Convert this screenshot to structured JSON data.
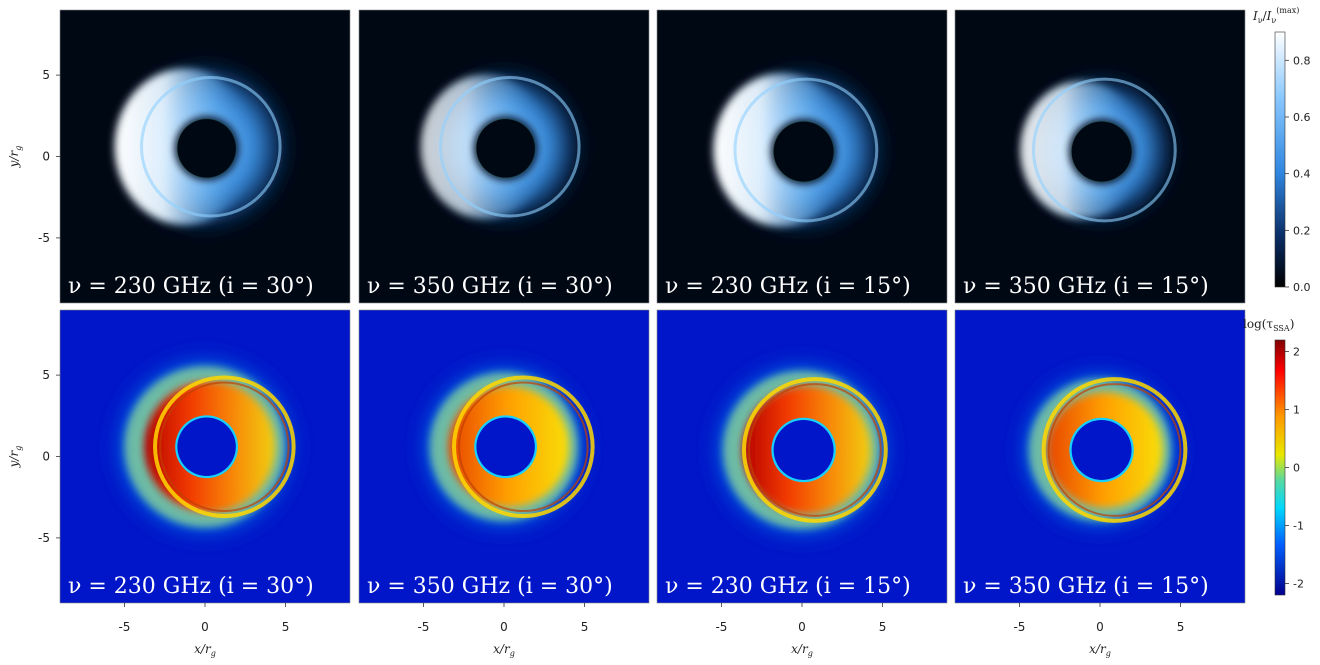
{
  "chart_data": {
    "type": "heatmap",
    "rows": [
      {
        "quantity": "intensity",
        "colormap": "black-blue-white",
        "colorbar": {
          "label": "I_ν/I_ν^(max)",
          "label_main": "I",
          "label_sub": "ν",
          "label_slash": "/",
          "label_main2": "I",
          "label_sub2": "ν",
          "label_sup2": "(max)",
          "range": [
            0,
            0.9
          ],
          "ticks": [
            "0.0",
            "0.2",
            "0.4",
            "0.6",
            "0.8"
          ],
          "tick_values": [
            0.0,
            0.2,
            0.4,
            0.6,
            0.8
          ]
        },
        "panels": [
          {
            "label": "ν = 230 GHz  (i = 30°)",
            "frequency_GHz": 230,
            "inclination_deg": 30
          },
          {
            "label": "ν = 350 GHz  (i = 30°)",
            "frequency_GHz": 350,
            "inclination_deg": 30
          },
          {
            "label": "ν = 230 GHz  (i = 15°)",
            "frequency_GHz": 230,
            "inclination_deg": 15
          },
          {
            "label": "ν = 350 GHz  (i = 15°)",
            "frequency_GHz": 350,
            "inclination_deg": 15
          }
        ]
      },
      {
        "quantity": "optical depth",
        "colormap": "jet",
        "colorbar": {
          "label": "log(τ_SSA)",
          "label_main": "log(τ",
          "label_sub": "SSA",
          "label_close": ")",
          "range": [
            -2.2,
            2.2
          ],
          "ticks": [
            "2",
            "1",
            "0",
            "-1",
            "-2"
          ],
          "tick_values": [
            2,
            1,
            0,
            -1,
            -2
          ]
        },
        "panels": [
          {
            "label": "ν = 230 GHz  (i = 30°)",
            "frequency_GHz": 230,
            "inclination_deg": 30
          },
          {
            "label": "ν = 350 GHz  (i = 30°)",
            "frequency_GHz": 350,
            "inclination_deg": 30
          },
          {
            "label": "ν = 230 GHz  (i = 15°)",
            "frequency_GHz": 230,
            "inclination_deg": 15
          },
          {
            "label": "ν = 350 GHz  (i = 15°)",
            "frequency_GHz": 350,
            "inclination_deg": 15
          }
        ]
      }
    ],
    "x_axis": {
      "label_main": "x",
      "label_slash": "/",
      "label_var": "r",
      "label_sub": "g",
      "range": [
        -9,
        9
      ],
      "ticks": [
        "-5",
        "0",
        "5"
      ],
      "tick_values": [
        -5,
        0,
        5
      ]
    },
    "y_axis": {
      "label_main": "y",
      "label_slash": "/",
      "label_var": "r",
      "label_sub": "g",
      "range": [
        -9,
        9
      ],
      "ticks": [
        "5",
        "0",
        "-5"
      ],
      "tick_values": [
        5,
        0,
        -5
      ]
    }
  }
}
